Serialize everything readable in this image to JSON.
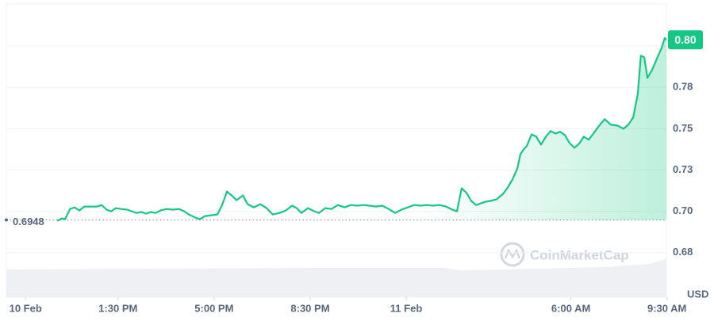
{
  "chart_data": {
    "type": "line",
    "color": "#16c784",
    "grid": true,
    "currency": "USD",
    "watermark": "CoinMarketCap",
    "open_price": 0.6948,
    "last_price_label": "0.80",
    "xlim": [
      9.43,
      33.48
    ],
    "ylim": [
      0.648,
      0.8255
    ],
    "xticks": [
      {
        "value": 10.13,
        "label": "10 Feb"
      },
      {
        "value": 13.5,
        "label": "1:30 PM"
      },
      {
        "value": 17,
        "label": "5:00 PM"
      },
      {
        "value": 20.5,
        "label": "8:30 PM"
      },
      {
        "value": 24,
        "label": "11 Feb"
      },
      {
        "value": 30,
        "label": "6:00 AM"
      },
      {
        "value": 33.5,
        "label": "9:30 AM"
      }
    ],
    "yticks": [
      {
        "value": 0.675,
        "label": "0.68"
      },
      {
        "value": 0.7,
        "label": "0.70"
      },
      {
        "value": 0.725,
        "label": "0.73"
      },
      0.75,
      {
        "value": 0.775,
        "label": "0.78"
      },
      {
        "value": 0.8,
        "label": "0.80"
      }
    ],
    "x": [
      11.28,
      11.46,
      11.57,
      11.75,
      11.92,
      12.09,
      12.27,
      12.5,
      12.73,
      12.9,
      13.08,
      13.25,
      13.42,
      13.6,
      13.83,
      14.0,
      14.17,
      14.35,
      14.52,
      14.69,
      14.87,
      15.04,
      15.27,
      15.5,
      15.73,
      15.91,
      16.08,
      16.31,
      16.49,
      16.66,
      16.89,
      17.12,
      17.29,
      17.47,
      17.64,
      17.82,
      18.05,
      18.22,
      18.45,
      18.68,
      18.91,
      19.14,
      19.38,
      19.61,
      19.84,
      20.01,
      20.18,
      20.42,
      20.65,
      20.82,
      21.05,
      21.28,
      21.51,
      21.75,
      21.98,
      22.21,
      22.44,
      22.67,
      22.9,
      23.13,
      23.36,
      23.6,
      23.83,
      24.06,
      24.29,
      24.52,
      24.75,
      24.98,
      25.21,
      25.45,
      25.68,
      25.85,
      26.02,
      26.2,
      26.37,
      26.54,
      26.72,
      26.89,
      27.06,
      27.29,
      27.53,
      27.7,
      27.87,
      28.05,
      28.16,
      28.28,
      28.39,
      28.57,
      28.74,
      28.91,
      29.09,
      29.26,
      29.43,
      29.61,
      29.78,
      29.95,
      30.13,
      30.3,
      30.47,
      30.65,
      30.82,
      30.99,
      31.23,
      31.46,
      31.69,
      31.92,
      32.09,
      32.27,
      32.44,
      32.55,
      32.67,
      32.79,
      32.96,
      33.13,
      33.31,
      33.42,
      33.48
    ],
    "values": [
      0.6942,
      0.6957,
      0.6952,
      0.7014,
      0.7024,
      0.7005,
      0.7029,
      0.7029,
      0.7029,
      0.7038,
      0.701,
      0.7,
      0.7019,
      0.7014,
      0.701,
      0.7,
      0.699,
      0.6995,
      0.6986,
      0.6995,
      0.699,
      0.7005,
      0.7014,
      0.701,
      0.7014,
      0.7,
      0.6981,
      0.6962,
      0.6952,
      0.6971,
      0.6976,
      0.6981,
      0.7038,
      0.712,
      0.7096,
      0.7067,
      0.7096,
      0.7043,
      0.7024,
      0.7043,
      0.7019,
      0.6981,
      0.699,
      0.7005,
      0.7034,
      0.7019,
      0.699,
      0.7019,
      0.7,
      0.699,
      0.7019,
      0.7014,
      0.7038,
      0.7024,
      0.7038,
      0.7034,
      0.7038,
      0.7034,
      0.7029,
      0.7034,
      0.7014,
      0.699,
      0.701,
      0.7024,
      0.7038,
      0.7034,
      0.7038,
      0.7034,
      0.7038,
      0.7029,
      0.701,
      0.7,
      0.7139,
      0.7111,
      0.7063,
      0.7038,
      0.7048,
      0.7058,
      0.7063,
      0.7072,
      0.7106,
      0.7144,
      0.7192,
      0.726,
      0.7346,
      0.7375,
      0.7394,
      0.7466,
      0.7452,
      0.7404,
      0.7452,
      0.7486,
      0.7471,
      0.7481,
      0.7462,
      0.7413,
      0.7385,
      0.7409,
      0.7452,
      0.7433,
      0.7471,
      0.751,
      0.7558,
      0.7524,
      0.7519,
      0.75,
      0.7524,
      0.7567,
      0.7712,
      0.7942,
      0.7933,
      0.7808,
      0.7856,
      0.7923,
      0.799,
      0.8048,
      0.8038
    ]
  }
}
